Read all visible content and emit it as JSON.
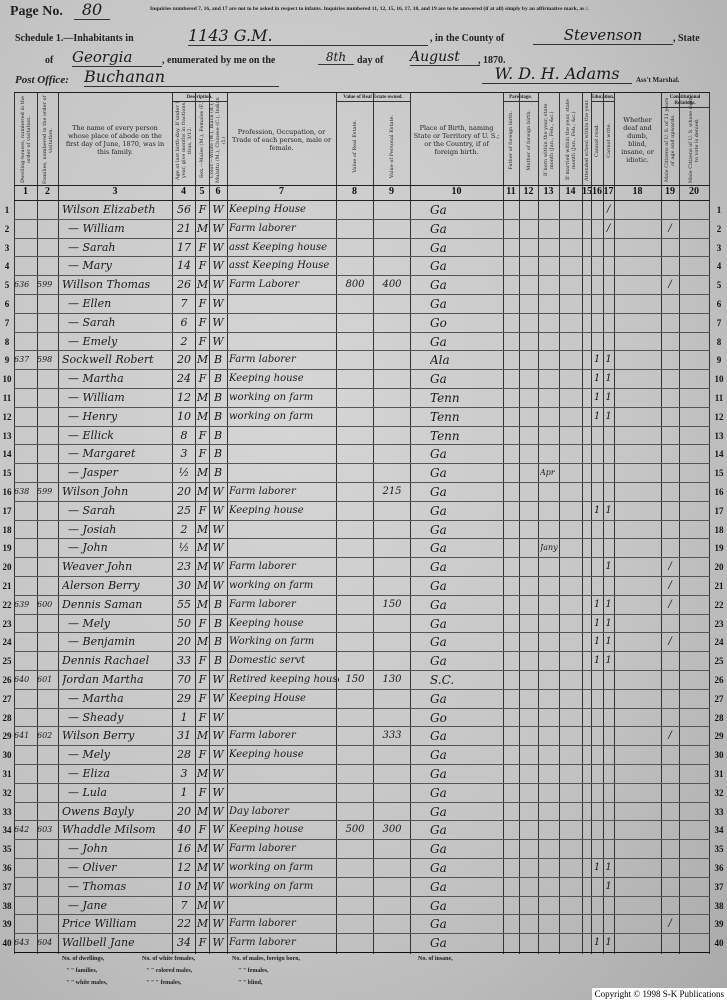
{
  "header": {
    "page_label": "Page No.",
    "page_no": "80",
    "instructions": "Inquiries numbered 7, 16, and 17 are not to be asked in respect to infants. Inquiries numbered 11, 12, 15, 16, 17, 18, and 19 are to be answered (if at all) simply by an affirmative mark, as /.",
    "schedule_label": "Schedule 1.—Inhabitants in",
    "district": "1143 G.M.",
    "county_label": ", in the County of",
    "county": "Stevenson",
    "state_label": ", State",
    "of_label": "of",
    "state": "Georgia",
    "enumerated_label": ", enumerated by me on the",
    "day": "8th",
    "day_of_label": "day of",
    "month": "August",
    "year": ", 1870.",
    "post_office_label": "Post Office:",
    "post_office": "Buchanan",
    "marshal_signature": "W. D. H. Adams",
    "marshal_title": "Ass't Marshal."
  },
  "columns": [
    {
      "num": "1",
      "label": "Dwelling-houses, numbered in the order of visitation."
    },
    {
      "num": "2",
      "label": "Families, numbered in the order of visitation."
    },
    {
      "num": "3",
      "label": "The name of every person whose place of abode on the first day of June, 1870, was in this family."
    },
    {
      "num": "4",
      "label": "Age at last birth-day. If under 1 year, give months in fractions, thus, 3/12."
    },
    {
      "num": "5",
      "label": "Sex.—Males (M.), Females (F.)"
    },
    {
      "num": "6",
      "label": "Color.—White (W.), Black (B.), Mulatto (M.), Chinese (C.), Indian (I.)"
    },
    {
      "num": "7",
      "label": "Profession, Occupation, or Trade of each person, male or female."
    },
    {
      "num": "8",
      "label": "Value of Real Estate."
    },
    {
      "num": "9",
      "label": "Value of Personal Estate."
    },
    {
      "num": "10",
      "label": "Place of Birth, naming State or Territory of U. S.; or the Country, if of foreign birth."
    },
    {
      "num": "11",
      "label": "Father of foreign birth."
    },
    {
      "num": "12",
      "label": "Mother of foreign birth."
    },
    {
      "num": "13",
      "label": "If born within the year, state month (Jan., Feb., &c.)"
    },
    {
      "num": "14",
      "label": "If married within the year, state month (Jan., Feb., &c.)"
    },
    {
      "num": "15",
      "label": "Attended school within the year."
    },
    {
      "num": "16",
      "label": "Cannot read."
    },
    {
      "num": "17",
      "label": "Cannot write."
    },
    {
      "num": "18",
      "label": "Whether deaf and dumb, blind, insane, or idiotic."
    },
    {
      "num": "19",
      "label": "Male Citizens of U. S. of 21 years of age and upwards."
    },
    {
      "num": "20",
      "label": "Male Citizens of U. S. whose right to vote is denied."
    }
  ],
  "group_headers": {
    "description": "Description.",
    "value_estate": "Value of Real Estate owned.",
    "parentage": "Parentage.",
    "education": "Education.",
    "constitutional": "Constitutional Relations."
  },
  "rows": [
    {
      "n": "1",
      "dw": "",
      "fam": "",
      "name": "Wilson Elizabeth",
      "age": "56",
      "sex": "F",
      "color": "W",
      "occ": "Keeping House",
      "real": "",
      "pers": "",
      "birth": "Ga",
      "c13": "",
      "c16": "",
      "c17": "/",
      "c19": ""
    },
    {
      "n": "2",
      "dw": "",
      "fam": "",
      "name": "— William",
      "age": "21",
      "sex": "M",
      "color": "W",
      "occ": "Farm laborer",
      "real": "",
      "pers": "",
      "birth": "Ga",
      "c13": "",
      "c16": "",
      "c17": "/",
      "c19": "/"
    },
    {
      "n": "3",
      "dw": "",
      "fam": "",
      "name": "— Sarah",
      "age": "17",
      "sex": "F",
      "color": "W",
      "occ": "asst Keeping house",
      "real": "",
      "pers": "",
      "birth": "Ga",
      "c13": "",
      "c16": "",
      "c17": "",
      "c19": ""
    },
    {
      "n": "4",
      "dw": "",
      "fam": "",
      "name": "— Mary",
      "age": "14",
      "sex": "F",
      "color": "W",
      "occ": "asst Keeping House",
      "real": "",
      "pers": "",
      "birth": "Ga",
      "c13": "",
      "c16": "",
      "c17": "",
      "c19": ""
    },
    {
      "n": "5",
      "dw": "636",
      "fam": "599",
      "name": "Willson Thomas",
      "age": "26",
      "sex": "M",
      "color": "W",
      "occ": "Farm Laborer",
      "real": "800",
      "pers": "400",
      "birth": "Ga",
      "c13": "",
      "c16": "",
      "c17": "",
      "c19": "/"
    },
    {
      "n": "6",
      "dw": "",
      "fam": "",
      "name": "— Ellen",
      "age": "7",
      "sex": "F",
      "color": "W",
      "occ": "",
      "real": "",
      "pers": "",
      "birth": "Ga",
      "c13": "",
      "c16": "",
      "c17": "",
      "c19": ""
    },
    {
      "n": "7",
      "dw": "",
      "fam": "",
      "name": "— Sarah",
      "age": "6",
      "sex": "F",
      "color": "W",
      "occ": "",
      "real": "",
      "pers": "",
      "birth": "Go",
      "c13": "",
      "c16": "",
      "c17": "",
      "c19": ""
    },
    {
      "n": "8",
      "dw": "",
      "fam": "",
      "name": "— Emely",
      "age": "2",
      "sex": "F",
      "color": "W",
      "occ": "",
      "real": "",
      "pers": "",
      "birth": "Ga",
      "c13": "",
      "c16": "",
      "c17": "",
      "c19": ""
    },
    {
      "n": "9",
      "dw": "637",
      "fam": "598",
      "name": "Sockwell Robert",
      "age": "20",
      "sex": "M",
      "color": "B",
      "occ": "Farm laborer",
      "real": "",
      "pers": "",
      "birth": "Ala",
      "c13": "",
      "c16": "1",
      "c17": "1",
      "c19": ""
    },
    {
      "n": "10",
      "dw": "",
      "fam": "",
      "name": "— Martha",
      "age": "24",
      "sex": "F",
      "color": "B",
      "occ": "Keeping house",
      "real": "",
      "pers": "",
      "birth": "Ga",
      "c13": "",
      "c16": "1",
      "c17": "1",
      "c19": ""
    },
    {
      "n": "11",
      "dw": "",
      "fam": "",
      "name": "— William",
      "age": "12",
      "sex": "M",
      "color": "B",
      "occ": "working on farm",
      "real": "",
      "pers": "",
      "birth": "Tenn",
      "c13": "",
      "c16": "1",
      "c17": "1",
      "c19": ""
    },
    {
      "n": "12",
      "dw": "",
      "fam": "",
      "name": "— Henry",
      "age": "10",
      "sex": "M",
      "color": "B",
      "occ": "working on farm",
      "real": "",
      "pers": "",
      "birth": "Tenn",
      "c13": "",
      "c16": "1",
      "c17": "1",
      "c19": ""
    },
    {
      "n": "13",
      "dw": "",
      "fam": "",
      "name": "— Ellick",
      "age": "8",
      "sex": "F",
      "color": "B",
      "occ": "",
      "real": "",
      "pers": "",
      "birth": "Tenn",
      "c13": "",
      "c16": "",
      "c17": "",
      "c19": ""
    },
    {
      "n": "14",
      "dw": "",
      "fam": "",
      "name": "— Margaret",
      "age": "3",
      "sex": "F",
      "color": "B",
      "occ": "",
      "real": "",
      "pers": "",
      "birth": "Ga",
      "c13": "",
      "c16": "",
      "c17": "",
      "c19": ""
    },
    {
      "n": "15",
      "dw": "",
      "fam": "",
      "name": "— Jasper",
      "age": "½",
      "sex": "M",
      "color": "B",
      "occ": "",
      "real": "",
      "pers": "",
      "birth": "Ga",
      "c13": "Apr",
      "c16": "",
      "c17": "",
      "c19": ""
    },
    {
      "n": "16",
      "dw": "638",
      "fam": "599",
      "name": "Wilson John",
      "age": "20",
      "sex": "M",
      "color": "W",
      "occ": "Farm laborer",
      "real": "",
      "pers": "215",
      "birth": "Ga",
      "c13": "",
      "c16": "",
      "c17": "",
      "c19": ""
    },
    {
      "n": "17",
      "dw": "",
      "fam": "",
      "name": "— Sarah",
      "age": "25",
      "sex": "F",
      "color": "W",
      "occ": "Keeping house",
      "real": "",
      "pers": "",
      "birth": "Ga",
      "c13": "",
      "c16": "1",
      "c17": "1",
      "c19": ""
    },
    {
      "n": "18",
      "dw": "",
      "fam": "",
      "name": "— Josiah",
      "age": "2",
      "sex": "M",
      "color": "W",
      "occ": "",
      "real": "",
      "pers": "",
      "birth": "Ga",
      "c13": "",
      "c16": "",
      "c17": "",
      "c19": ""
    },
    {
      "n": "19",
      "dw": "",
      "fam": "",
      "name": "— John",
      "age": "½",
      "sex": "M",
      "color": "W",
      "occ": "",
      "real": "",
      "pers": "",
      "birth": "Ga",
      "c13": "Jany",
      "c16": "",
      "c17": "",
      "c19": ""
    },
    {
      "n": "20",
      "dw": "",
      "fam": "",
      "name": "Weaver John",
      "age": "23",
      "sex": "M",
      "color": "W",
      "occ": "Farm laborer",
      "real": "",
      "pers": "",
      "birth": "Ga",
      "c13": "",
      "c16": "",
      "c17": "1",
      "c19": "/"
    },
    {
      "n": "21",
      "dw": "",
      "fam": "",
      "name": "Alerson Berry",
      "age": "30",
      "sex": "M",
      "color": "W",
      "occ": "working on farm",
      "real": "",
      "pers": "",
      "birth": "Ga",
      "c13": "",
      "c16": "",
      "c17": "",
      "c19": "/"
    },
    {
      "n": "22",
      "dw": "639",
      "fam": "600",
      "name": "Dennis Saman",
      "age": "55",
      "sex": "M",
      "color": "B",
      "occ": "Farm laborer",
      "real": "",
      "pers": "150",
      "birth": "Ga",
      "c13": "",
      "c16": "1",
      "c17": "1",
      "c19": "/"
    },
    {
      "n": "23",
      "dw": "",
      "fam": "",
      "name": "— Mely",
      "age": "50",
      "sex": "F",
      "color": "B",
      "occ": "Keeping house",
      "real": "",
      "pers": "",
      "birth": "Ga",
      "c13": "",
      "c16": "1",
      "c17": "1",
      "c19": ""
    },
    {
      "n": "24",
      "dw": "",
      "fam": "",
      "name": "— Benjamin",
      "age": "20",
      "sex": "M",
      "color": "B",
      "occ": "Working on farm",
      "real": "",
      "pers": "",
      "birth": "Ga",
      "c13": "",
      "c16": "1",
      "c17": "1",
      "c19": "/"
    },
    {
      "n": "25",
      "dw": "",
      "fam": "",
      "name": "Dennis Rachael",
      "age": "33",
      "sex": "F",
      "color": "B",
      "occ": "Domestic servt",
      "real": "",
      "pers": "",
      "birth": "Ga",
      "c13": "",
      "c16": "1",
      "c17": "1",
      "c19": ""
    },
    {
      "n": "26",
      "dw": "640",
      "fam": "601",
      "name": "Jordan Martha",
      "age": "70",
      "sex": "F",
      "color": "W",
      "occ": "Retired keeping house",
      "real": "150",
      "pers": "130",
      "birth": "S.C.",
      "c13": "",
      "c16": "",
      "c17": "",
      "c19": ""
    },
    {
      "n": "27",
      "dw": "",
      "fam": "",
      "name": "— Martha",
      "age": "29",
      "sex": "F",
      "color": "W",
      "occ": "Keeping House",
      "real": "",
      "pers": "",
      "birth": "Ga",
      "c13": "",
      "c16": "",
      "c17": "",
      "c19": ""
    },
    {
      "n": "28",
      "dw": "",
      "fam": "",
      "name": "— Sheady",
      "age": "1",
      "sex": "F",
      "color": "W",
      "occ": "",
      "real": "",
      "pers": "",
      "birth": "Go",
      "c13": "",
      "c16": "",
      "c17": "",
      "c19": ""
    },
    {
      "n": "29",
      "dw": "641",
      "fam": "602",
      "name": "Wilson Berry",
      "age": "31",
      "sex": "M",
      "color": "W",
      "occ": "Farm laborer",
      "real": "",
      "pers": "333",
      "birth": "Ga",
      "c13": "",
      "c16": "",
      "c17": "",
      "c19": "/"
    },
    {
      "n": "30",
      "dw": "",
      "fam": "",
      "name": "— Mely",
      "age": "28",
      "sex": "F",
      "color": "W",
      "occ": "Keeping house",
      "real": "",
      "pers": "",
      "birth": "Ga",
      "c13": "",
      "c16": "",
      "c17": "",
      "c19": ""
    },
    {
      "n": "31",
      "dw": "",
      "fam": "",
      "name": "— Eliza",
      "age": "3",
      "sex": "M",
      "color": "W",
      "occ": "",
      "real": "",
      "pers": "",
      "birth": "Ga",
      "c13": "",
      "c16": "",
      "c17": "",
      "c19": ""
    },
    {
      "n": "32",
      "dw": "",
      "fam": "",
      "name": "— Lula",
      "age": "1",
      "sex": "F",
      "color": "W",
      "occ": "",
      "real": "",
      "pers": "",
      "birth": "Ga",
      "c13": "",
      "c16": "",
      "c17": "",
      "c19": ""
    },
    {
      "n": "33",
      "dw": "",
      "fam": "",
      "name": "Owens Bayly",
      "age": "20",
      "sex": "M",
      "color": "W",
      "occ": "Day laborer",
      "real": "",
      "pers": "",
      "birth": "Ga",
      "c13": "",
      "c16": "",
      "c17": "",
      "c19": ""
    },
    {
      "n": "34",
      "dw": "642",
      "fam": "603",
      "name": "Whaddle Milsom",
      "age": "40",
      "sex": "F",
      "color": "W",
      "occ": "Keeping house",
      "real": "500",
      "pers": "300",
      "birth": "Ga",
      "c13": "",
      "c16": "",
      "c17": "",
      "c19": ""
    },
    {
      "n": "35",
      "dw": "",
      "fam": "",
      "name": "— John",
      "age": "16",
      "sex": "M",
      "color": "W",
      "occ": "Farm laborer",
      "real": "",
      "pers": "",
      "birth": "Ga",
      "c13": "",
      "c16": "",
      "c17": "",
      "c19": ""
    },
    {
      "n": "36",
      "dw": "",
      "fam": "",
      "name": "— Oliver",
      "age": "12",
      "sex": "M",
      "color": "W",
      "occ": "working on farm",
      "real": "",
      "pers": "",
      "birth": "Ga",
      "c13": "",
      "c16": "1",
      "c17": "1",
      "c19": ""
    },
    {
      "n": "37",
      "dw": "",
      "fam": "",
      "name": "— Thomas",
      "age": "10",
      "sex": "M",
      "color": "W",
      "occ": "working on farm",
      "real": "",
      "pers": "",
      "birth": "Ga",
      "c13": "",
      "c16": "",
      "c17": "1",
      "c19": ""
    },
    {
      "n": "38",
      "dw": "",
      "fam": "",
      "name": "— Jane",
      "age": "7",
      "sex": "M",
      "color": "W",
      "occ": "",
      "real": "",
      "pers": "",
      "birth": "Ga",
      "c13": "",
      "c16": "",
      "c17": "",
      "c19": ""
    },
    {
      "n": "39",
      "dw": "",
      "fam": "",
      "name": "Price William",
      "age": "22",
      "sex": "M",
      "color": "W",
      "occ": "Farm laborer",
      "real": "",
      "pers": "",
      "birth": "Ga",
      "c13": "",
      "c16": "",
      "c17": "",
      "c19": "/"
    },
    {
      "n": "40",
      "dw": "643",
      "fam": "604",
      "name": "Wallbell Jane",
      "age": "34",
      "sex": "F",
      "color": "W",
      "occ": "Farm laborer",
      "real": "",
      "pers": "",
      "birth": "Ga",
      "c13": "",
      "c16": "1",
      "c17": "1",
      "c19": ""
    }
  ],
  "footer": {
    "dwellings": "No. of dwellings,",
    "families": "\" \" families,",
    "white_males": "\" \" white males,",
    "white_females": "No. of white females,",
    "colored_males": "\" \" colored males,",
    "colored_females": "\" \" \" females,",
    "foreign_males": "No. of males, foreign born,",
    "foreign_females": "\" \" females,",
    "blind": "\" \" blind,",
    "insane": "No. of insane,"
  },
  "copyright": "Copyright © 1998 S-K Publications"
}
